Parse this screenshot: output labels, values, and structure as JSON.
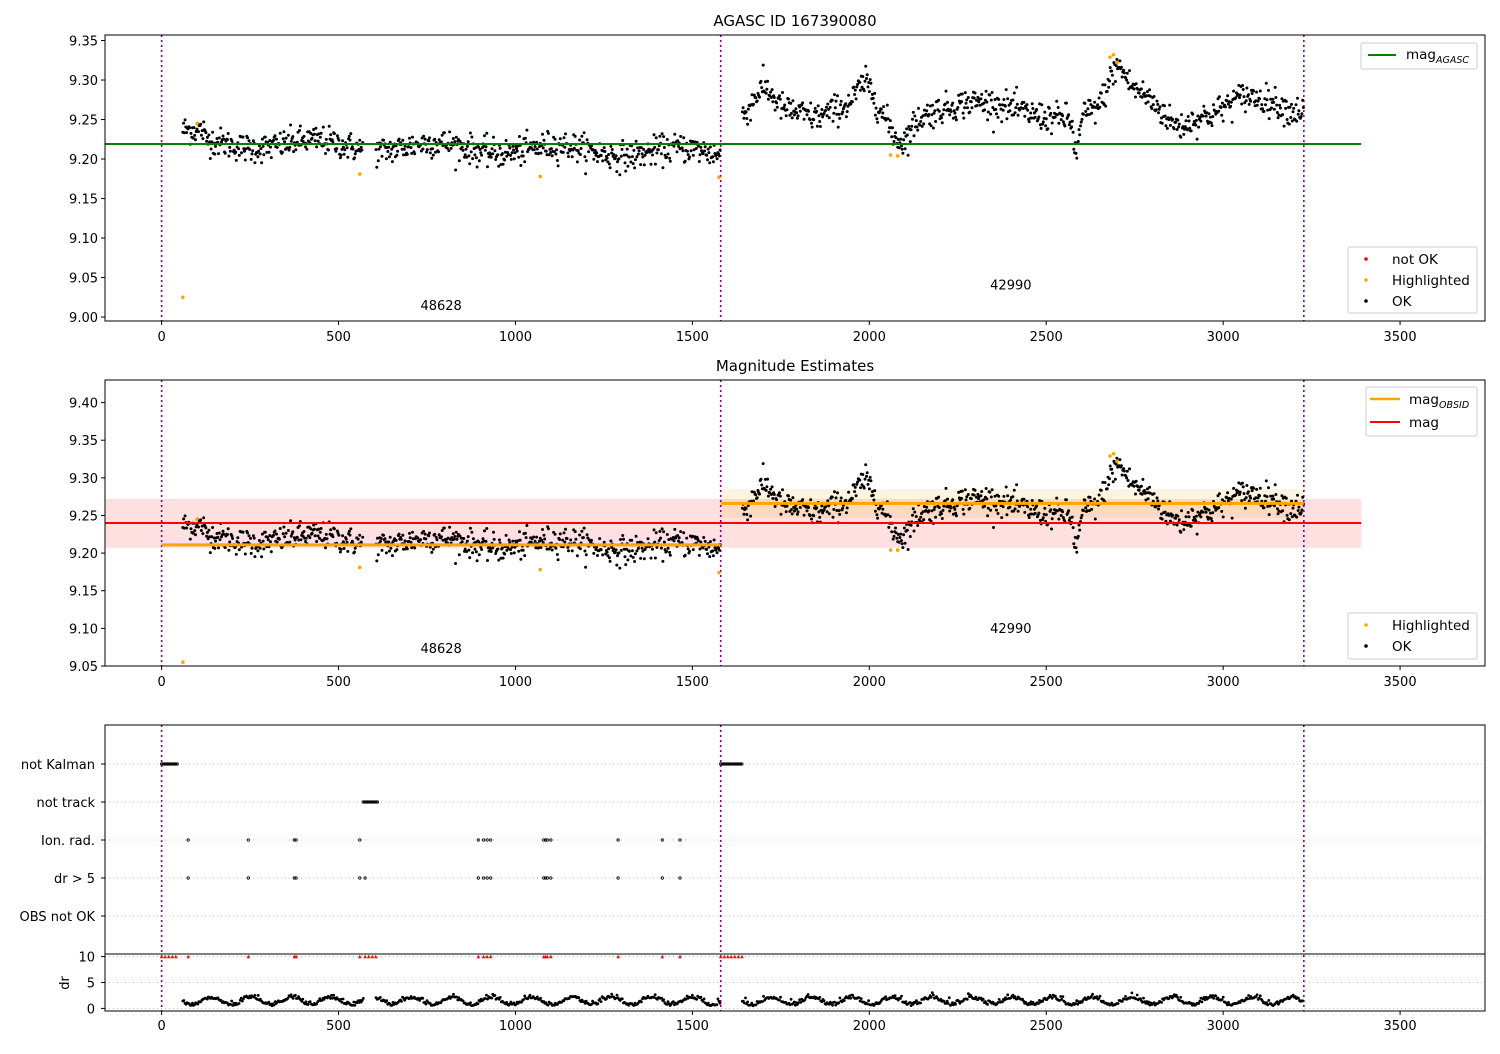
{
  "chart_data": [
    {
      "type": "scatter",
      "title": "AGASC ID 167390080",
      "xlim": [
        -160,
        3740
      ],
      "ylim": [
        8.995,
        9.357
      ],
      "xticks": [
        "0",
        "500",
        "1000",
        "1500",
        "2000",
        "2500",
        "3000",
        "3500"
      ],
      "yticks": [
        "9.00",
        "9.05",
        "9.10",
        "9.15",
        "9.20",
        "9.25",
        "9.30",
        "9.35"
      ],
      "obsid_boundaries": [
        0,
        1580,
        3228
      ],
      "annotations": [
        {
          "text": "48628",
          "x": 790,
          "y": 9.009
        },
        {
          "text": "42990",
          "x": 2400,
          "y": 9.035
        }
      ],
      "lines": [
        {
          "label": "mag_AGASC",
          "color": "#008000",
          "y": 9.219,
          "x": [
            -160,
            3390
          ]
        }
      ],
      "legend_lines": {
        "base": "mag",
        "sub": "AGASC"
      },
      "legend_points": [
        {
          "label": "not OK",
          "color": "#ff0000"
        },
        {
          "label": "Highlighted",
          "color": "#ffa500"
        },
        {
          "label": "OK",
          "color": "#000000"
        }
      ],
      "series": [
        {
          "name": "Highlighted",
          "color": "#ffa500",
          "points": [
            [
              60,
              9.025
            ],
            [
              100,
              9.245
            ],
            [
              560,
              9.181
            ],
            [
              1070,
              9.178
            ],
            [
              1575,
              9.177
            ],
            [
              2060,
              9.205
            ],
            [
              2080,
              9.204
            ],
            [
              2690,
              9.332
            ],
            [
              2680,
              9.329
            ],
            [
              2700,
              9.322
            ]
          ]
        },
        {
          "name": "not OK",
          "color": "#ff0000",
          "points": []
        }
      ]
    },
    {
      "type": "scatter",
      "title": "Magnitude Estimates",
      "xlim": [
        -160,
        3740
      ],
      "ylim": [
        9.05,
        9.43
      ],
      "xticks": [
        "0",
        "500",
        "1000",
        "1500",
        "2000",
        "2500",
        "3000",
        "3500"
      ],
      "yticks": [
        "9.05",
        "9.10",
        "9.15",
        "9.20",
        "9.25",
        "9.30",
        "9.35",
        "9.40"
      ],
      "obsid_boundaries": [
        0,
        1580,
        3228
      ],
      "annotations": [
        {
          "text": "48628",
          "x": 790,
          "y": 9.067
        },
        {
          "text": "42990",
          "x": 2400,
          "y": 9.094
        }
      ],
      "bands": [
        {
          "color": "#ff0000",
          "opacity": 0.12,
          "x": [
            -160,
            3390
          ],
          "y": [
            9.207,
            9.272
          ]
        },
        {
          "color": "#ffa500",
          "opacity": 0.12,
          "x": [
            1580,
            3228
          ],
          "y": [
            9.247,
            9.285
          ]
        }
      ],
      "lines": [
        {
          "label": "mag_OBSID",
          "color": "#ffa500",
          "y": 9.211,
          "x": [
            0,
            1580
          ]
        },
        {
          "label": "mag_OBSID",
          "color": "#ffa500",
          "y": 9.266,
          "x": [
            1580,
            3228
          ]
        },
        {
          "label": "mag",
          "color": "#ff0000",
          "y": 9.24,
          "x": [
            -160,
            3390
          ]
        }
      ],
      "legend_lines": [
        {
          "base": "mag",
          "sub": "OBSID",
          "color": "#ffa500"
        },
        {
          "base": "mag",
          "sub": "",
          "color": "#ff0000"
        }
      ],
      "legend_points": [
        {
          "label": "Highlighted",
          "color": "#ffa500"
        },
        {
          "label": "OK",
          "color": "#000000"
        }
      ],
      "series": [
        {
          "name": "Highlighted",
          "color": "#ffa500",
          "points": [
            [
              60,
              9.055
            ],
            [
              100,
              9.245
            ],
            [
              560,
              9.181
            ],
            [
              1070,
              9.178
            ],
            [
              1575,
              9.174
            ],
            [
              2060,
              9.204
            ],
            [
              2080,
              9.204
            ],
            [
              2690,
              9.332
            ],
            [
              2680,
              9.329
            ],
            [
              2700,
              9.322
            ]
          ]
        }
      ]
    },
    {
      "type": "scatter",
      "title": "",
      "xlim": [
        -160,
        3740
      ],
      "xticks": [
        "0",
        "500",
        "1000",
        "1500",
        "2000",
        "2500",
        "3000",
        "3500"
      ],
      "flag_labels": [
        "not Kalman",
        "not track",
        "Ion. rad.",
        "dr > 5",
        "OBS not OK"
      ],
      "obsid_boundaries": [
        0,
        1580,
        3228
      ],
      "flags": {
        "not Kalman": [
          [
            0,
            45
          ],
          [
            1580,
            1640
          ]
        ],
        "not track": [
          [
            570,
            610
          ]
        ],
        "Ion. rad.": [
          75,
          245,
          375,
          380,
          560,
          895,
          910,
          920,
          930,
          1080,
          1085,
          1090,
          1100,
          1290,
          1415,
          1465
        ],
        "dr > 5": [
          75,
          245,
          375,
          380,
          560,
          575,
          895,
          910,
          920,
          930,
          1080,
          1085,
          1090,
          1100,
          1290,
          1415,
          1465
        ],
        "OBS not OK": []
      },
      "dr_panel": {
        "ylabel": "dr",
        "yticks": [
          "0",
          "5",
          "10"
        ],
        "ylim": [
          -0.5,
          10.5
        ],
        "high_dr_positions": [
          0,
          10,
          20,
          30,
          40,
          75,
          245,
          375,
          380,
          560,
          575,
          585,
          595,
          605,
          895,
          910,
          920,
          930,
          1080,
          1085,
          1090,
          1100,
          1290,
          1415,
          1465,
          1580,
          1590,
          1600,
          1610,
          1620,
          1630,
          1640
        ]
      }
    }
  ]
}
